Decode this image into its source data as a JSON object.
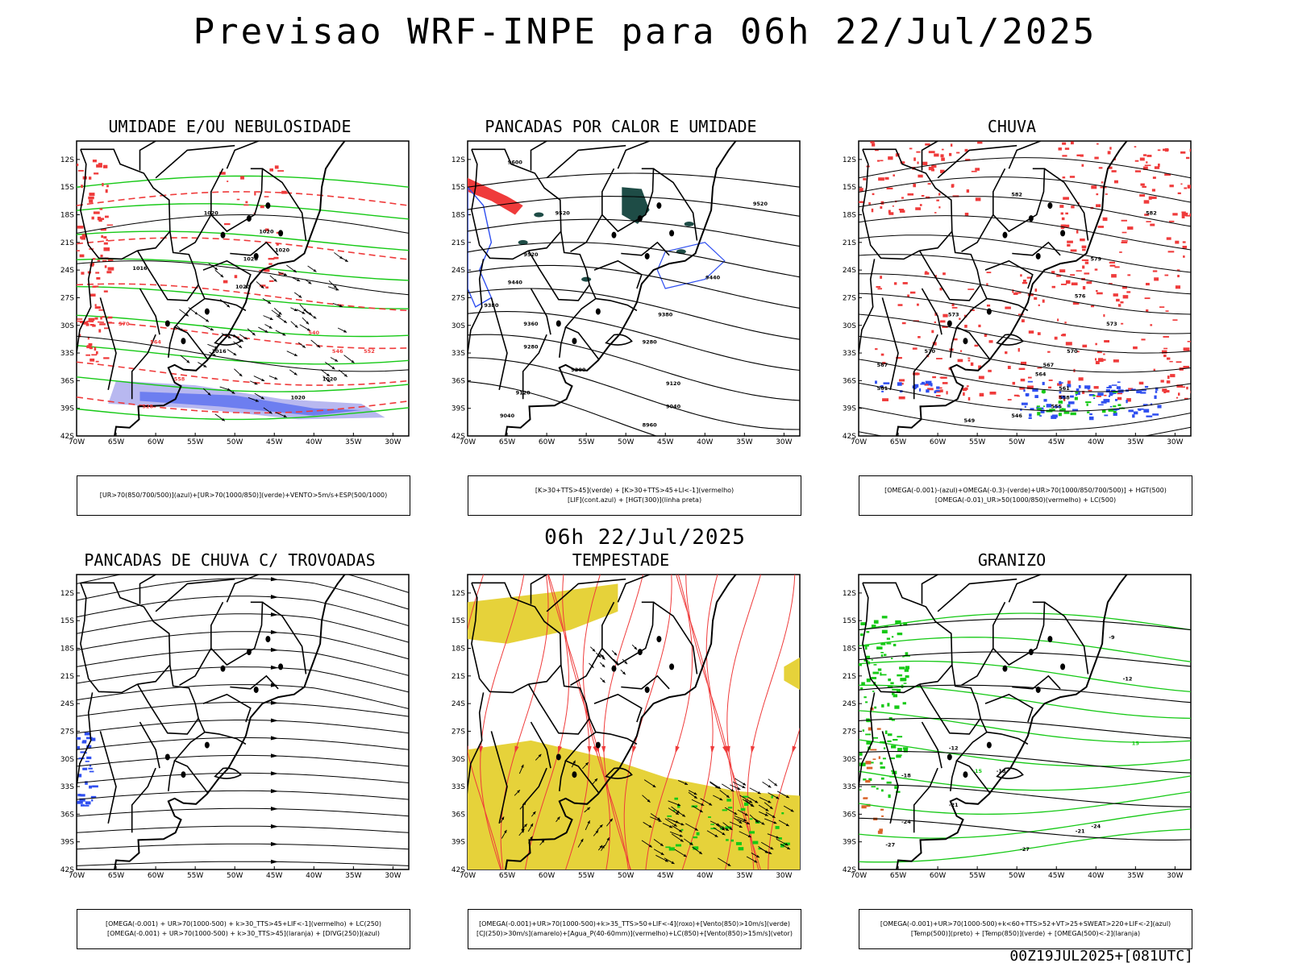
{
  "page": {
    "title": "Previsao WRF-INPE  para 06h 22/Jul/2025",
    "mid_title": "06h 22/Jul/2025",
    "footer": "00Z19JUL2025+[081UTC]"
  },
  "axes": {
    "lat_labels": [
      "12S",
      "15S",
      "18S",
      "21S",
      "24S",
      "27S",
      "30S",
      "33S",
      "36S",
      "39S",
      "42S"
    ],
    "lon_labels": [
      "70W",
      "65W",
      "60W",
      "55W",
      "50W",
      "45W",
      "40W",
      "35W",
      "30W"
    ]
  },
  "colors": {
    "blue": "#2f4ff0",
    "light_blue": "#b8b8f0",
    "green": "#16c916",
    "red": "#ef3b3b",
    "yellow": "#e6d23a",
    "dark_teal": "#1e4c46",
    "black": "#000000"
  },
  "panels": [
    {
      "title": "UMIDADE E/OU NEBULOSIDADE",
      "caption": [
        "[UR>70(850/700/500)](azul)+[UR>70(1000/850)](verde)+VENTO>5m/s+ESP(500/1000)"
      ],
      "contour_labels": [
        "1020",
        "1016",
        "1020",
        "1020",
        "1020",
        "1020",
        "1016",
        "1020",
        "1020",
        "540",
        "546",
        "552",
        "558",
        "564",
        "570",
        "528"
      ]
    },
    {
      "title": "PANCADAS POR CALOR E UMIDADE",
      "caption": [
        "[K>30+TTS>45](verde) + [K>30+TTS>45+LI<-1](vermelho)",
        "[LIF](cont.azul) + [HGT(300)](linha preta)"
      ],
      "contour_labels": [
        "9600",
        "9520",
        "9520",
        "9520",
        "9440",
        "9440",
        "9380",
        "9360",
        "9380",
        "9280",
        "9280",
        "9200",
        "9120",
        "9120",
        "9040",
        "9040",
        "8960"
      ]
    },
    {
      "title": "CHUVA",
      "caption": [
        "[OMEGA(-0.001)-(azul)+OMEGA(-0.3)-(verde)+UR>70(1000/850/700/500)] + HGT(500)",
        "[OMEGA(-0.01)_UR>50(1000/850)(vermelho) + LC(500)"
      ],
      "contour_labels": [
        "582",
        "582",
        "579",
        "576",
        "573",
        "570",
        "570",
        "573",
        "567",
        "567",
        "564",
        "561",
        "561",
        "558",
        "555",
        "549",
        "546"
      ]
    },
    {
      "title": "PANCADAS DE CHUVA C/ TROVOADAS",
      "caption": [
        "[OMEGA(-0.001) + UR>70(1000-500) + k>30_TTS>45+LIF<-1](vermelho) + LC(250)",
        "[OMEGA(-0.001) + UR>70(1000-500) + k>30_TTS>45](laranja) + [DIVG(250)](azul)"
      ],
      "contour_labels": []
    },
    {
      "title": "TEMPESTADE",
      "caption": [
        "[OMEGA(-0.001)+UR>70(1000-500)+k>35_TTS>50+LIF<-4](roxo)+[Vento(850)>10m/s](verde)",
        "[CJ(250)>30m/s](amarelo)+[Agua_P(40-60mm)](vermelho)+LC(850)+[Vento(850)>15m/s](vetor)"
      ],
      "contour_labels": []
    },
    {
      "title": "GRANIZO",
      "caption": [
        "[OMEGA(-0.001)+UR>70(1000-500)+k<60+TTS>52+VT>25+SWEAT>220+LIF<-2](azul)",
        "[Temp(500)](preto) + [Temp(850)](verde) + [OMEGA(500)<-2](laranja)"
      ],
      "contour_labels": [
        "-9",
        "-12",
        "-12",
        "15",
        "-15",
        "-18",
        "-18",
        "-21",
        "-24",
        "-24",
        "-27",
        "-27",
        "-21"
      ]
    }
  ],
  "chart_data": [
    {
      "type": "other",
      "title": "UMIDADE E/OU NEBULOSIDADE",
      "x_ticks": [
        "70W",
        "65W",
        "60W",
        "55W",
        "50W",
        "45W",
        "40W",
        "35W",
        "30W"
      ],
      "y_ticks": [
        "12S",
        "15S",
        "18S",
        "21S",
        "24S",
        "27S",
        "30S",
        "33S",
        "36S",
        "39S",
        "42S"
      ],
      "xlim": [
        -70,
        -28
      ],
      "ylim": [
        -42,
        -10
      ]
    },
    {
      "type": "other",
      "title": "PANCADAS POR CALOR E UMIDADE",
      "x_ticks": [
        "70W",
        "65W",
        "60W",
        "55W",
        "50W",
        "45W",
        "40W",
        "35W",
        "30W"
      ],
      "y_ticks": [
        "12S",
        "15S",
        "18S",
        "21S",
        "24S",
        "27S",
        "30S",
        "33S",
        "36S",
        "39S",
        "42S"
      ],
      "xlim": [
        -70,
        -28
      ],
      "ylim": [
        -42,
        -10
      ]
    },
    {
      "type": "other",
      "title": "CHUVA",
      "x_ticks": [
        "70W",
        "65W",
        "60W",
        "55W",
        "50W",
        "45W",
        "40W",
        "35W",
        "30W"
      ],
      "y_ticks": [
        "12S",
        "15S",
        "18S",
        "21S",
        "24S",
        "27S",
        "30S",
        "33S",
        "36S",
        "39S",
        "42S"
      ],
      "xlim": [
        -70,
        -28
      ],
      "ylim": [
        -42,
        -10
      ]
    },
    {
      "type": "other",
      "title": "PANCADAS DE CHUVA C/ TROVOADAS",
      "x_ticks": [
        "70W",
        "65W",
        "60W",
        "55W",
        "50W",
        "45W",
        "40W",
        "35W",
        "30W"
      ],
      "y_ticks": [
        "12S",
        "15S",
        "18S",
        "21S",
        "24S",
        "27S",
        "30S",
        "33S",
        "36S",
        "39S",
        "42S"
      ],
      "xlim": [
        -70,
        -28
      ],
      "ylim": [
        -42,
        -10
      ]
    },
    {
      "type": "other",
      "title": "TEMPESTADE",
      "x_ticks": [
        "70W",
        "65W",
        "60W",
        "55W",
        "50W",
        "45W",
        "40W",
        "35W",
        "30W"
      ],
      "y_ticks": [
        "12S",
        "15S",
        "18S",
        "21S",
        "24S",
        "27S",
        "30S",
        "33S",
        "36S",
        "39S",
        "42S"
      ],
      "xlim": [
        -70,
        -28
      ],
      "ylim": [
        -42,
        -10
      ]
    },
    {
      "type": "other",
      "title": "GRANIZO",
      "x_ticks": [
        "70W",
        "65W",
        "60W",
        "55W",
        "50W",
        "45W",
        "40W",
        "35W",
        "30W"
      ],
      "y_ticks": [
        "12S",
        "15S",
        "18S",
        "21S",
        "24S",
        "27S",
        "30S",
        "33S",
        "36S",
        "39S",
        "42S"
      ],
      "xlim": [
        -70,
        -28
      ],
      "ylim": [
        -42,
        -10
      ]
    }
  ]
}
